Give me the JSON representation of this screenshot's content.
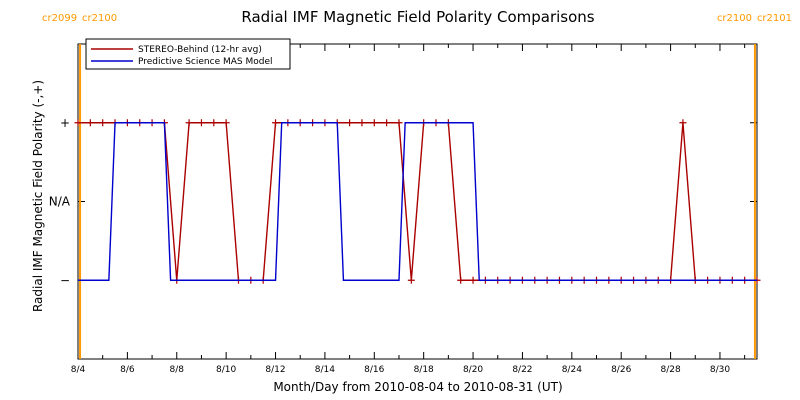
{
  "chart_data": {
    "type": "line",
    "title": "Radial IMF Magnetic Field Polarity Comparisons",
    "xlabel": "Month/Day from 2010-08-04 to 2010-08-31 (UT)",
    "ylabel": "Radial IMF Magnetic Field Polarity (-,+)",
    "xlim": [
      "2010-08-04T00:00",
      "2010-08-31T12:00"
    ],
    "x_ticks": [
      "8/4",
      "8/6",
      "8/8",
      "8/10",
      "8/12",
      "8/14",
      "8/16",
      "8/18",
      "8/20",
      "8/22",
      "8/24",
      "8/26",
      "8/28",
      "8/30"
    ],
    "y_ticks": [
      {
        "value": 1,
        "label": "+"
      },
      {
        "value": 0,
        "label": "N/A"
      },
      {
        "value": -1,
        "label": "−"
      }
    ],
    "ylim": [
      -2,
      2
    ],
    "legend_position": "top-left",
    "markers": [
      {
        "date": "2010-08-04T02:00",
        "labels": [
          "cr2099",
          "cr2100"
        ],
        "color": "#ff9900"
      },
      {
        "date": "2010-08-31T10:00",
        "labels": [
          "cr2100",
          "cr2101"
        ],
        "color": "#ff9900"
      }
    ],
    "series": [
      {
        "name": "STEREO-Behind (12-hr avg)",
        "color": "#aa0000",
        "marker": "+",
        "points": [
          [
            "2010-08-04T00:00",
            1
          ],
          [
            "2010-08-04T12:00",
            1
          ],
          [
            "2010-08-05T00:00",
            1
          ],
          [
            "2010-08-05T12:00",
            1
          ],
          [
            "2010-08-06T00:00",
            1
          ],
          [
            "2010-08-06T12:00",
            1
          ],
          [
            "2010-08-07T00:00",
            1
          ],
          [
            "2010-08-07T12:00",
            1
          ],
          [
            "2010-08-08T00:00",
            -1
          ],
          [
            "2010-08-08T12:00",
            1
          ],
          [
            "2010-08-09T00:00",
            1
          ],
          [
            "2010-08-09T12:00",
            1
          ],
          [
            "2010-08-10T00:00",
            1
          ],
          [
            "2010-08-10T12:00",
            -1
          ],
          [
            "2010-08-11T00:00",
            -1
          ],
          [
            "2010-08-11T12:00",
            -1
          ],
          [
            "2010-08-12T00:00",
            1
          ],
          [
            "2010-08-12T12:00",
            1
          ],
          [
            "2010-08-13T00:00",
            1
          ],
          [
            "2010-08-13T12:00",
            1
          ],
          [
            "2010-08-14T00:00",
            1
          ],
          [
            "2010-08-14T12:00",
            1
          ],
          [
            "2010-08-15T00:00",
            1
          ],
          [
            "2010-08-15T12:00",
            1
          ],
          [
            "2010-08-16T00:00",
            1
          ],
          [
            "2010-08-16T12:00",
            1
          ],
          [
            "2010-08-17T00:00",
            1
          ],
          [
            "2010-08-17T12:00",
            -1
          ],
          [
            "2010-08-18T00:00",
            1
          ],
          [
            "2010-08-18T12:00",
            1
          ],
          [
            "2010-08-19T00:00",
            1
          ],
          [
            "2010-08-19T12:00",
            -1
          ],
          [
            "2010-08-20T00:00",
            -1
          ],
          [
            "2010-08-20T12:00",
            -1
          ],
          [
            "2010-08-21T00:00",
            -1
          ],
          [
            "2010-08-21T12:00",
            -1
          ],
          [
            "2010-08-22T00:00",
            -1
          ],
          [
            "2010-08-22T12:00",
            -1
          ],
          [
            "2010-08-23T00:00",
            -1
          ],
          [
            "2010-08-23T12:00",
            -1
          ],
          [
            "2010-08-24T00:00",
            -1
          ],
          [
            "2010-08-24T12:00",
            -1
          ],
          [
            "2010-08-25T00:00",
            -1
          ],
          [
            "2010-08-25T12:00",
            -1
          ],
          [
            "2010-08-26T00:00",
            -1
          ],
          [
            "2010-08-26T12:00",
            -1
          ],
          [
            "2010-08-27T00:00",
            -1
          ],
          [
            "2010-08-27T12:00",
            -1
          ],
          [
            "2010-08-28T00:00",
            -1
          ],
          [
            "2010-08-28T12:00",
            1
          ],
          [
            "2010-08-29T00:00",
            -1
          ],
          [
            "2010-08-29T12:00",
            -1
          ],
          [
            "2010-08-30T00:00",
            -1
          ],
          [
            "2010-08-30T12:00",
            -1
          ],
          [
            "2010-08-31T00:00",
            -1
          ],
          [
            "2010-08-31T12:00",
            -1
          ]
        ]
      },
      {
        "name": "Predictive Science MAS Model",
        "color": "#0000cc",
        "points": [
          [
            "2010-08-04T00:00",
            -1
          ],
          [
            "2010-08-05T06:00",
            -1
          ],
          [
            "2010-08-05T12:00",
            1
          ],
          [
            "2010-08-07T12:00",
            1
          ],
          [
            "2010-08-07T18:00",
            -1
          ],
          [
            "2010-08-12T00:00",
            -1
          ],
          [
            "2010-08-12T06:00",
            1
          ],
          [
            "2010-08-14T12:00",
            1
          ],
          [
            "2010-08-14T18:00",
            -1
          ],
          [
            "2010-08-17T00:00",
            -1
          ],
          [
            "2010-08-17T06:00",
            1
          ],
          [
            "2010-08-20T00:00",
            1
          ],
          [
            "2010-08-20T06:00",
            -1
          ],
          [
            "2010-08-31T12:00",
            -1
          ]
        ]
      }
    ]
  }
}
